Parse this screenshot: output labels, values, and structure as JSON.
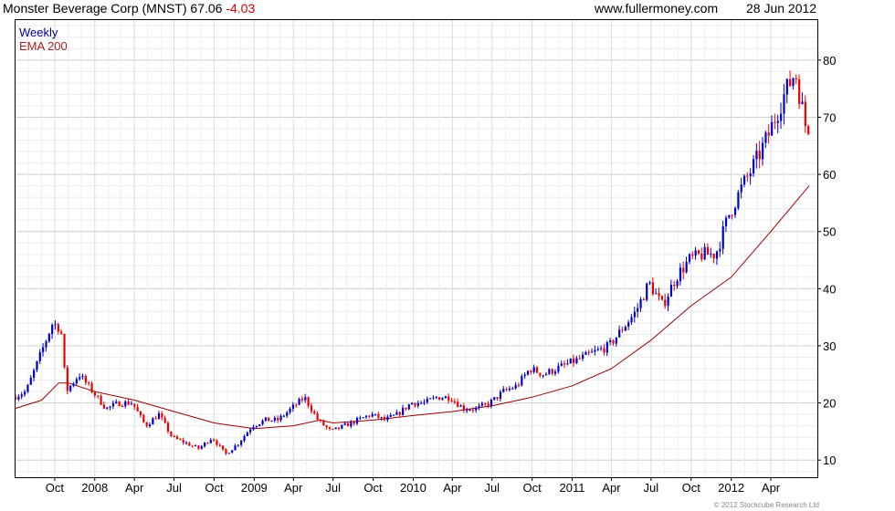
{
  "header": {
    "company": "Monster Beverage Corp (MNST)",
    "price": "67.06",
    "change": "-4.03",
    "site": "www.fullermoney.com",
    "date": "28 Jun 2012"
  },
  "legend": {
    "series1": "Weekly",
    "series2": "EMA 200"
  },
  "credit": "© 2012 Stockcube Research Ltd",
  "colors": {
    "up": "#0000cc",
    "down": "#ee0000",
    "ema": "#990000",
    "grid": "#d0d0d0",
    "frame": "#000000"
  },
  "chart_data": {
    "type": "candlestick",
    "interval": "weekly",
    "y_ticks": [
      10,
      20,
      30,
      40,
      50,
      60,
      70,
      80
    ],
    "ylim": [
      7,
      87
    ],
    "x_ticks": [
      "Oct",
      "2008",
      "Apr",
      "Jul",
      "Oct",
      "2009",
      "Apr",
      "Jul",
      "Oct",
      "2010",
      "Apr",
      "Jul",
      "Oct",
      "2011",
      "Apr",
      "Jul",
      "Oct",
      "2012",
      "Apr"
    ],
    "grid": true,
    "price_points": [
      [
        "2007-07-01",
        21
      ],
      [
        "2007-08-01",
        22
      ],
      [
        "2007-09-01",
        28
      ],
      [
        "2007-10-01",
        34
      ],
      [
        "2007-10-20",
        33
      ],
      [
        "2007-11-01",
        22
      ],
      [
        "2007-12-01",
        25
      ],
      [
        "2008-01-01",
        22
      ],
      [
        "2008-02-01",
        19
      ],
      [
        "2008-03-01",
        20
      ],
      [
        "2008-04-01",
        20
      ],
      [
        "2008-05-01",
        16
      ],
      [
        "2008-06-01",
        18
      ],
      [
        "2008-07-01",
        14
      ],
      [
        "2008-08-01",
        13
      ],
      [
        "2008-09-01",
        12
      ],
      [
        "2008-10-01",
        14
      ],
      [
        "2008-11-01",
        11
      ],
      [
        "2008-12-01",
        13
      ],
      [
        "2009-01-01",
        16
      ],
      [
        "2009-02-01",
        17
      ],
      [
        "2009-03-01",
        17
      ],
      [
        "2009-04-01",
        19
      ],
      [
        "2009-05-01",
        21
      ],
      [
        "2009-06-01",
        17
      ],
      [
        "2009-07-01",
        15
      ],
      [
        "2009-08-01",
        16
      ],
      [
        "2009-09-01",
        17
      ],
      [
        "2009-10-01",
        18
      ],
      [
        "2009-11-01",
        17
      ],
      [
        "2009-12-01",
        18
      ],
      [
        "2010-01-01",
        20
      ],
      [
        "2010-02-01",
        20
      ],
      [
        "2010-03-01",
        21
      ],
      [
        "2010-04-01",
        21
      ],
      [
        "2010-05-01",
        19
      ],
      [
        "2010-06-01",
        19
      ],
      [
        "2010-07-01",
        20
      ],
      [
        "2010-08-01",
        22
      ],
      [
        "2010-09-01",
        23
      ],
      [
        "2010-10-01",
        26
      ],
      [
        "2010-11-01",
        25
      ],
      [
        "2010-12-01",
        26
      ],
      [
        "2011-01-01",
        27
      ],
      [
        "2011-02-01",
        28
      ],
      [
        "2011-03-01",
        29
      ],
      [
        "2011-04-01",
        30
      ],
      [
        "2011-05-01",
        33
      ],
      [
        "2011-06-01",
        36
      ],
      [
        "2011-07-01",
        41
      ],
      [
        "2011-08-01",
        37
      ],
      [
        "2011-09-01",
        42
      ],
      [
        "2011-10-01",
        45
      ],
      [
        "2011-11-01",
        46
      ],
      [
        "2011-12-01",
        46
      ],
      [
        "2012-01-01",
        53
      ],
      [
        "2012-02-01",
        58
      ],
      [
        "2012-03-01",
        62
      ],
      [
        "2012-04-01",
        67
      ],
      [
        "2012-05-01",
        73
      ],
      [
        "2012-06-01",
        78
      ],
      [
        "2012-06-28",
        67.06
      ]
    ],
    "ema_points": [
      [
        "2007-07-01",
        19
      ],
      [
        "2007-09-01",
        20.5
      ],
      [
        "2007-10-10",
        23.5
      ],
      [
        "2007-11-01",
        23.5
      ],
      [
        "2008-01-01",
        22
      ],
      [
        "2008-04-01",
        20.5
      ],
      [
        "2008-07-01",
        18.5
      ],
      [
        "2008-10-01",
        16.5
      ],
      [
        "2009-01-01",
        15.5
      ],
      [
        "2009-04-01",
        16
      ],
      [
        "2009-06-01",
        17
      ],
      [
        "2009-07-01",
        16.5
      ],
      [
        "2009-10-01",
        17
      ],
      [
        "2010-01-01",
        17.8
      ],
      [
        "2010-04-01",
        18.5
      ],
      [
        "2010-07-01",
        19.5
      ],
      [
        "2010-10-01",
        21
      ],
      [
        "2011-01-01",
        23
      ],
      [
        "2011-04-01",
        26
      ],
      [
        "2011-07-01",
        31
      ],
      [
        "2011-10-01",
        37
      ],
      [
        "2012-01-01",
        42
      ],
      [
        "2012-04-01",
        50
      ],
      [
        "2012-06-28",
        58
      ]
    ]
  }
}
